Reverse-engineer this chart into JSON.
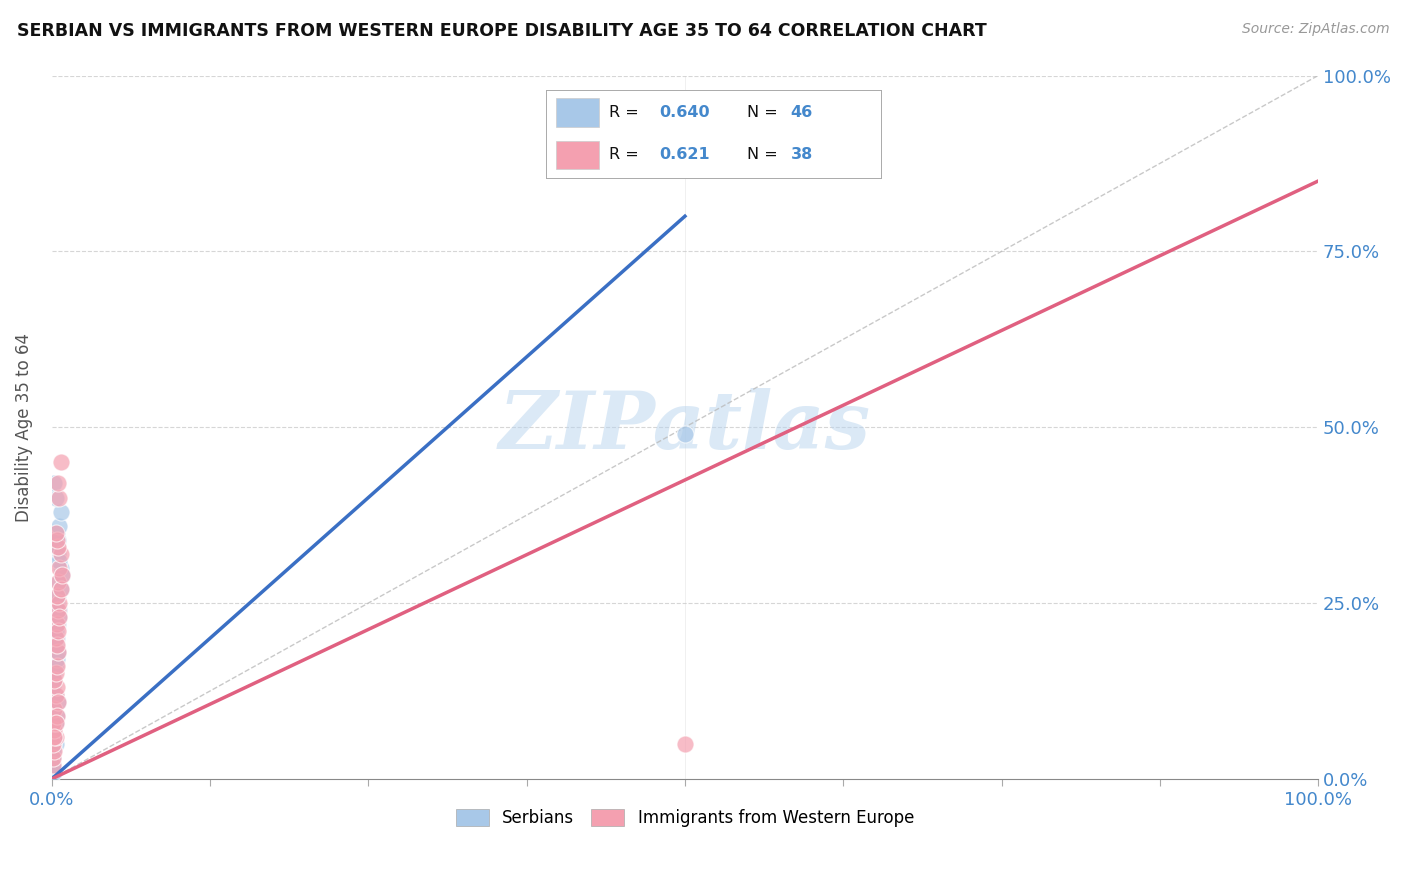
{
  "title": "SERBIAN VS IMMIGRANTS FROM WESTERN EUROPE DISABILITY AGE 35 TO 64 CORRELATION CHART",
  "source": "Source: ZipAtlas.com",
  "ylabel": "Disability Age 35 to 64",
  "r_serbian": 0.64,
  "n_serbian": 46,
  "r_western": 0.621,
  "n_western": 38,
  "xlim": [
    0.0,
    1.0
  ],
  "ylim": [
    0.0,
    1.0
  ],
  "serbian_color": "#a8c8e8",
  "western_color": "#f4a0b0",
  "serbian_line_color": "#3a6fc4",
  "western_line_color": "#e06080",
  "legend_serbian": "Serbians",
  "legend_western": "Immigrants from Western Europe",
  "watermark": "ZIPatlas",
  "background_color": "#ffffff",
  "grid_color": "#cccccc",
  "serb_x": [
    0.001,
    0.001,
    0.002,
    0.001,
    0.003,
    0.002,
    0.001,
    0.001,
    0.002,
    0.003,
    0.001,
    0.002,
    0.001,
    0.001,
    0.002,
    0.003,
    0.004,
    0.005,
    0.003,
    0.004,
    0.005,
    0.006,
    0.004,
    0.005,
    0.006,
    0.007,
    0.005,
    0.004,
    0.003,
    0.006,
    0.007,
    0.008,
    0.006,
    0.005,
    0.004,
    0.003,
    0.002,
    0.001,
    0.004,
    0.005,
    0.006,
    0.007,
    0.003,
    0.002,
    0.5,
    0.001
  ],
  "serb_y": [
    0.02,
    0.03,
    0.01,
    0.04,
    0.05,
    0.06,
    0.07,
    0.08,
    0.1,
    0.12,
    0.13,
    0.14,
    0.02,
    0.03,
    0.15,
    0.16,
    0.17,
    0.18,
    0.19,
    0.2,
    0.22,
    0.24,
    0.25,
    0.26,
    0.28,
    0.3,
    0.32,
    0.35,
    0.21,
    0.23,
    0.27,
    0.29,
    0.31,
    0.11,
    0.09,
    0.08,
    0.06,
    0.05,
    0.33,
    0.34,
    0.36,
    0.38,
    0.4,
    0.42,
    0.49,
    0.04
  ],
  "west_x": [
    0.001,
    0.001,
    0.002,
    0.001,
    0.003,
    0.002,
    0.001,
    0.002,
    0.003,
    0.004,
    0.002,
    0.003,
    0.004,
    0.005,
    0.003,
    0.004,
    0.005,
    0.006,
    0.004,
    0.005,
    0.006,
    0.007,
    0.005,
    0.004,
    0.003,
    0.006,
    0.005,
    0.007,
    0.004,
    0.005,
    0.006,
    0.007,
    0.008,
    0.005,
    0.004,
    0.003,
    0.5,
    0.002
  ],
  "west_y": [
    0.02,
    0.03,
    0.04,
    0.05,
    0.06,
    0.07,
    0.08,
    0.1,
    0.12,
    0.13,
    0.14,
    0.15,
    0.16,
    0.18,
    0.2,
    0.22,
    0.24,
    0.25,
    0.26,
    0.28,
    0.3,
    0.32,
    0.33,
    0.34,
    0.35,
    0.4,
    0.42,
    0.45,
    0.19,
    0.21,
    0.23,
    0.27,
    0.29,
    0.11,
    0.09,
    0.08,
    0.05,
    0.06
  ],
  "serb_line_x0": 0.0,
  "serb_line_y0": 0.0,
  "serb_line_x1": 0.5,
  "serb_line_y1": 0.8,
  "west_line_x0": 0.0,
  "west_line_y0": 0.0,
  "west_line_x1": 1.0,
  "west_line_y1": 0.85
}
